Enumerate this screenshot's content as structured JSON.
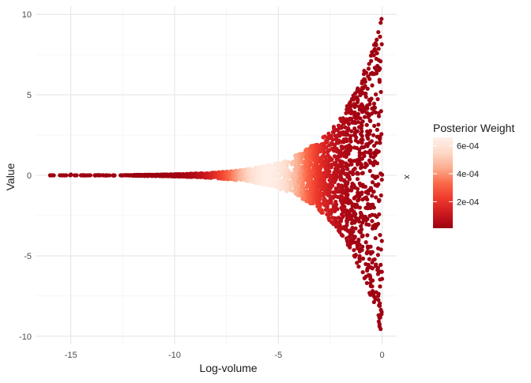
{
  "chart_data": {
    "type": "scatter",
    "xlabel": "Log-volume",
    "ylabel": "Value",
    "right_axis_label": "x",
    "xlim": [
      -16.7,
      0.7
    ],
    "ylim": [
      -10.5,
      10.5
    ],
    "x_ticks": [
      -15,
      -10,
      -5,
      0
    ],
    "x_tick_labels": [
      "-15",
      "-10",
      "-5",
      "0"
    ],
    "y_ticks": [
      -10,
      -5,
      0,
      5,
      10
    ],
    "y_tick_labels": [
      "-10",
      "-5",
      "0",
      "5",
      "10"
    ],
    "grid": true,
    "legend": {
      "title": "Posterior Weight",
      "placement": "right",
      "range": [
        1e-05,
        0.00066
      ],
      "ticks": [
        0.0002,
        0.0004,
        0.0006
      ],
      "tick_labels": [
        "2e-04",
        "4e-04",
        "6e-04"
      ],
      "colors_low_to_high": [
        "#9e0011",
        "#cc1a1f",
        "#ef3b2c",
        "#fb6a4a",
        "#fcae91",
        "#fdd9c8",
        "#fff0ea"
      ]
    },
    "points_description": {
      "n_points": 2500,
      "x_min": -16.0,
      "x_max": 0.0,
      "envelope": "y bounded by approximately +/- 10*exp(x/2)",
      "peak_weight_x": -5.5
    }
  }
}
